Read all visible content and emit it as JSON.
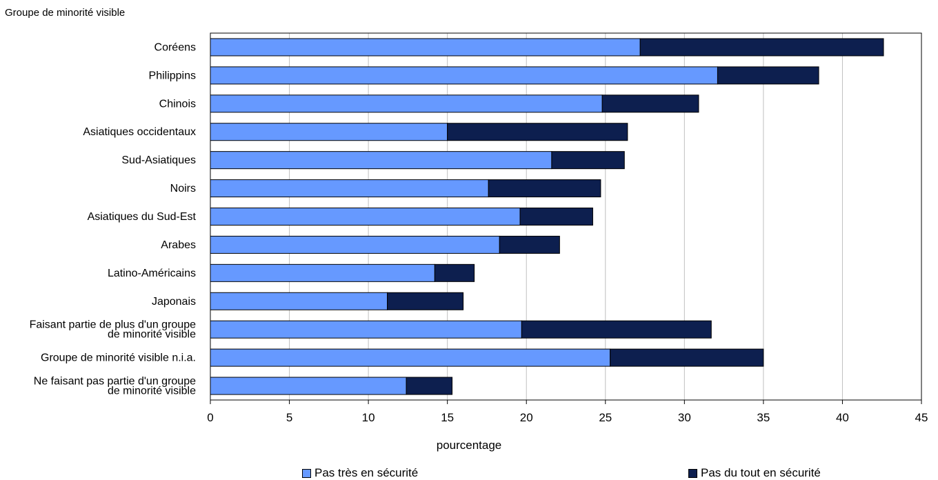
{
  "chart_data": {
    "type": "bar",
    "orientation": "horizontal",
    "stacked": true,
    "ytitle": "Groupe de minorité visible",
    "xlabel": "pourcentage",
    "xlim": [
      0,
      45
    ],
    "xticks": [
      0,
      5,
      10,
      15,
      20,
      25,
      30,
      35,
      40,
      45
    ],
    "grid": "vertical",
    "legend_position": "bottom",
    "categories": [
      [
        "Coréens"
      ],
      [
        "Philippins"
      ],
      [
        "Chinois"
      ],
      [
        "Asiatiques occidentaux"
      ],
      [
        "Sud-Asiatiques"
      ],
      [
        "Noirs"
      ],
      [
        "Asiatiques du Sud-Est"
      ],
      [
        "Arabes"
      ],
      [
        "Latino-Américains"
      ],
      [
        "Japonais"
      ],
      [
        "Faisant partie de plus d'un groupe",
        "de minorité visible"
      ],
      [
        "Groupe de minorité visible n.i.a."
      ],
      [
        "Ne faisant pas partie d'un groupe",
        "de minorité visible"
      ]
    ],
    "series": [
      {
        "name": "Pas très en sécurité",
        "color": "#6699ff",
        "values": [
          27.2,
          32.1,
          24.8,
          15.0,
          21.6,
          17.6,
          19.6,
          18.3,
          14.2,
          11.2,
          19.7,
          25.3,
          12.4
        ]
      },
      {
        "name": "Pas du tout en sécurité",
        "color": "#0d1f4f",
        "values": [
          15.4,
          6.4,
          6.1,
          11.4,
          4.6,
          7.1,
          4.6,
          3.8,
          2.5,
          4.8,
          12.0,
          9.7,
          2.9
        ]
      }
    ]
  }
}
